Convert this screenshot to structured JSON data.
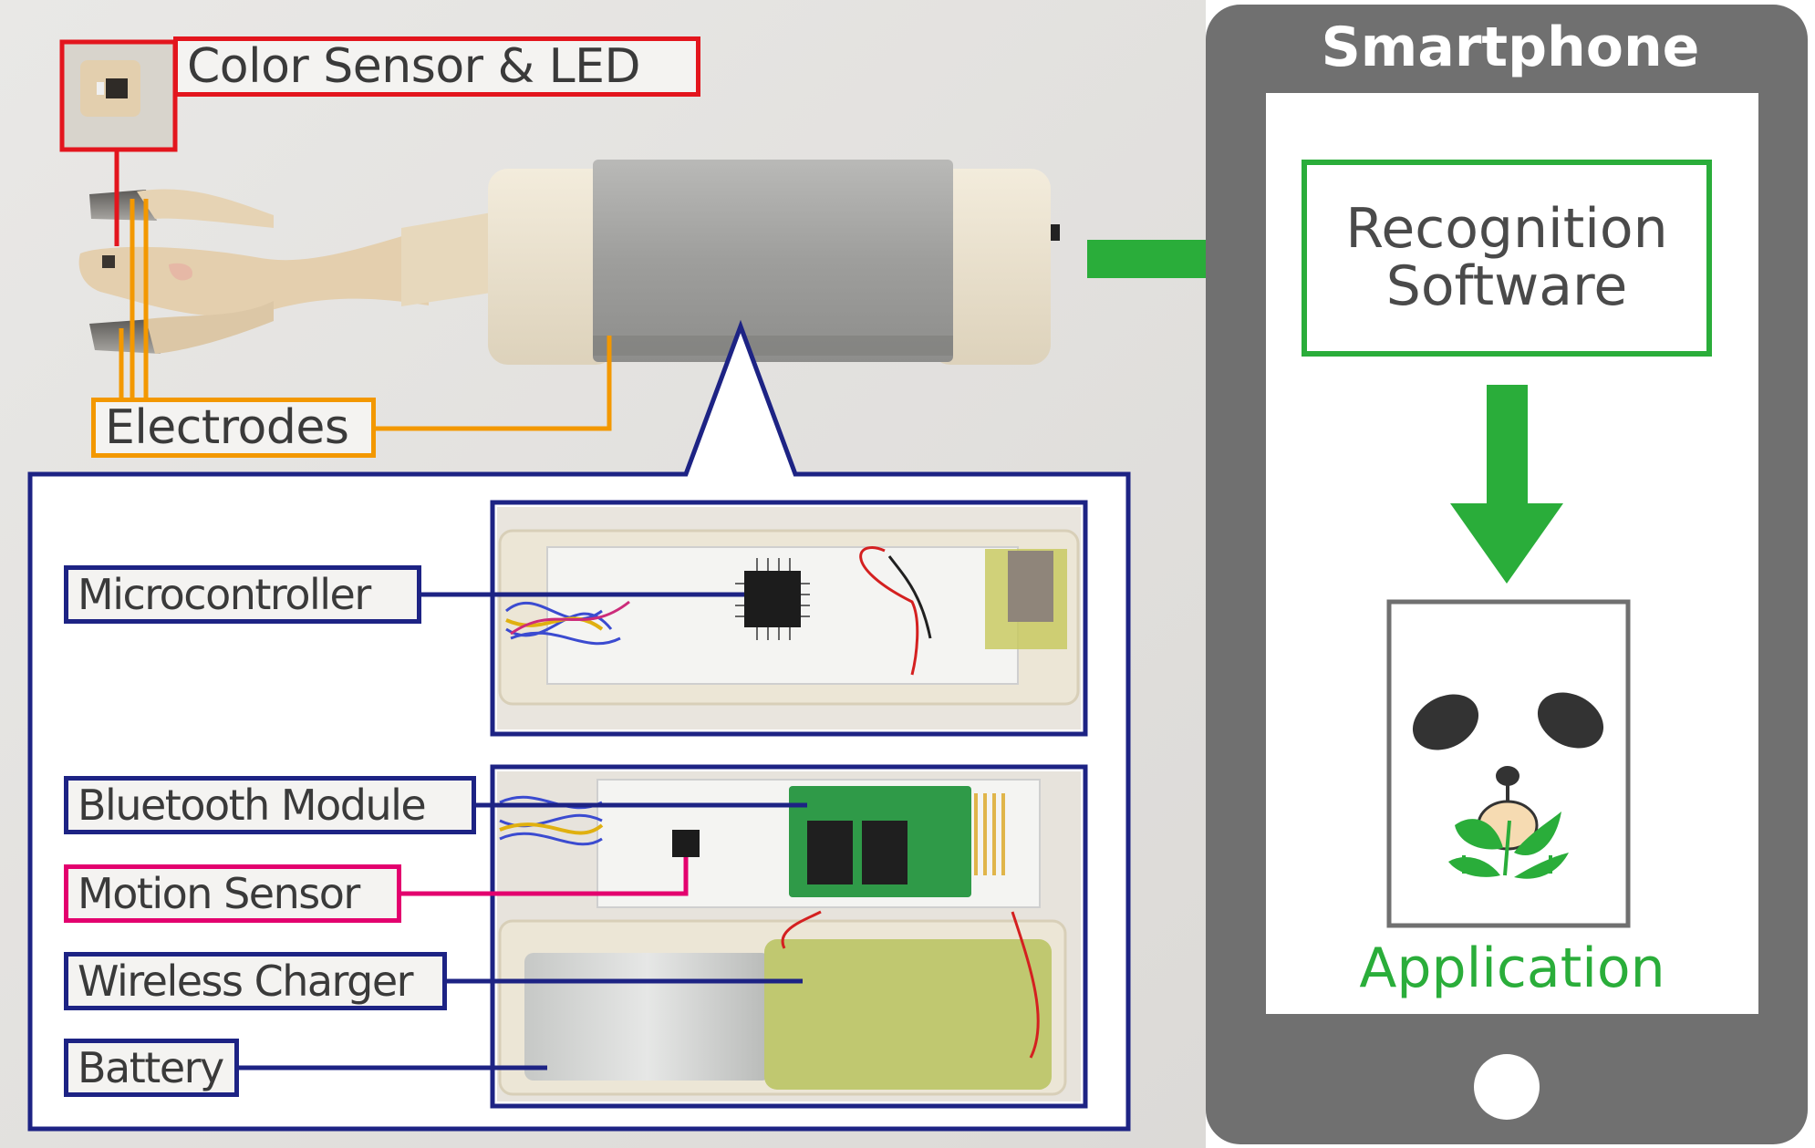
{
  "fork": {
    "color_sensor_label": "Color Sensor & LED",
    "electrodes_label": "Electrodes"
  },
  "internals": {
    "microcontroller_label": "Microcontroller",
    "bluetooth_label": "Bluetooth Module",
    "motion_sensor_label": "Motion Sensor",
    "wireless_charger_label": "Wireless Charger",
    "battery_label": "Battery"
  },
  "smartphone": {
    "title": "Smartphone",
    "recognition_line1": "Recognition",
    "recognition_line2": "Software",
    "application_label": "Application",
    "app_icon": "panda-face-icon"
  },
  "colors": {
    "red": "#e3151d",
    "orange": "#f39800",
    "navy": "#1d2384",
    "magenta": "#e3006e",
    "green": "#2aad3a",
    "phone_gray": "#707070"
  }
}
